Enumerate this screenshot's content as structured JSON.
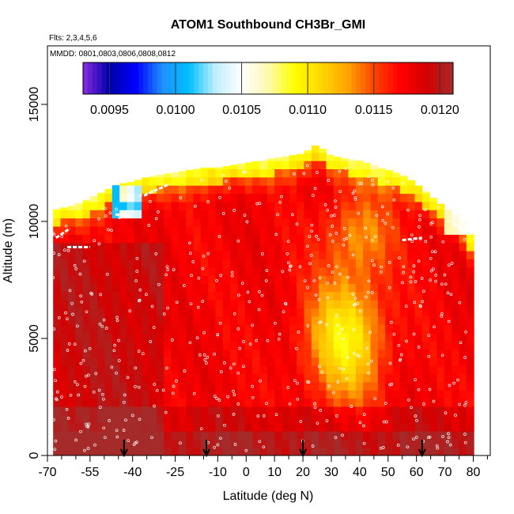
{
  "chart_data": {
    "type": "heatmap",
    "title": "ATOM1 Southbound CH3Br_GMI",
    "subtitle_flights": "Flts: 2,3,4,5,6",
    "subtitle_dates": "MMDD: 0801,0803,0806,0808,0812",
    "xlabel": "Latitude (deg N)",
    "ylabel": "Altitude (m)",
    "xlim": [
      -70,
      86
    ],
    "ylim": [
      0,
      17500
    ],
    "x_ticks": [
      -70,
      -55,
      -40,
      -25,
      -10,
      0,
      10,
      20,
      30,
      40,
      50,
      60,
      70,
      80
    ],
    "x_tick_labels": [
      "-70",
      "-55",
      "-40",
      "-25",
      "-10",
      "0",
      "10",
      "20",
      "30",
      "40",
      "50",
      "60",
      "70",
      "80"
    ],
    "x_minor_ticks": [
      -65,
      -60,
      -50,
      -45,
      -35,
      -30,
      -20,
      -15,
      -5,
      5,
      15,
      25,
      35,
      45,
      55,
      65,
      75,
      85
    ],
    "y_ticks": [
      0,
      5000,
      10000,
      15000
    ],
    "y_tick_labels": [
      "0",
      "5000",
      "10000",
      "15000"
    ],
    "colorbar": {
      "range": [
        0.0093,
        0.0121
      ],
      "ticks": [
        0.0095,
        0.01,
        0.0105,
        0.011,
        0.0115,
        0.012
      ],
      "tick_labels": [
        "0.0095",
        "0.0100",
        "0.0105",
        "0.0110",
        "0.0115",
        "0.0120"
      ],
      "colors": [
        "#8a2be2",
        "#0000aa",
        "#0000ff",
        "#1e90ff",
        "#00bfff",
        "#bfefff",
        "#ffffff",
        "#fff8b0",
        "#ffff00",
        "#ffd700",
        "#ffa500",
        "#ff4500",
        "#ff0000",
        "#d40000",
        "#a52a2a"
      ]
    },
    "profile": {
      "lat": [
        -68,
        -60,
        -55,
        -50,
        -45,
        -40,
        -35,
        -30,
        -25,
        -20,
        -15,
        -10,
        -5,
        0,
        5,
        10,
        15,
        20,
        25,
        30,
        35,
        40,
        45,
        50,
        55,
        60,
        65,
        70,
        75,
        79
      ],
      "top_alt": [
        10500,
        10700,
        11000,
        11300,
        11600,
        11700,
        11900,
        12000,
        12100,
        12200,
        12300,
        12300,
        12400,
        12500,
        12600,
        12700,
        12800,
        12900,
        13300,
        12800,
        12700,
        12600,
        12400,
        12200,
        12000,
        11600,
        11100,
        10600,
        10200,
        9500
      ]
    },
    "field_description": "Curtain of CH3Br_GMI values by latitude and altitude",
    "arrow_latitudes": [
      -43,
      -14,
      20,
      62
    ],
    "flight_track_points": "white circles scattered throughout the curtain"
  }
}
